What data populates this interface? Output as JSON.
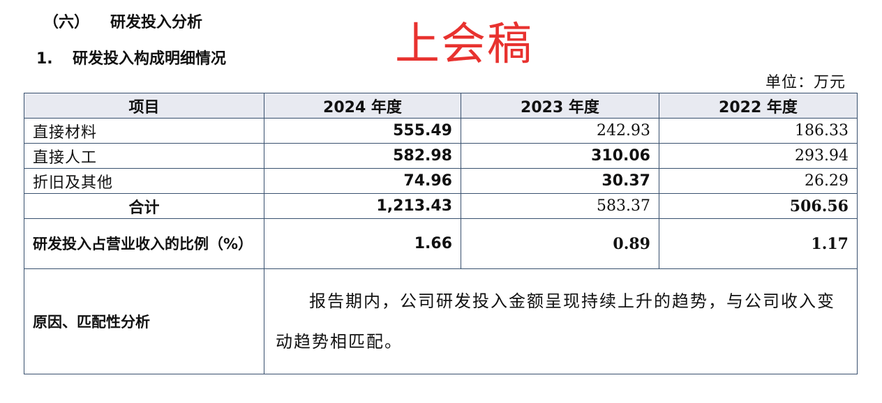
{
  "section_heading": {
    "number": "（六）",
    "title": "研发投入分析"
  },
  "sub_heading": {
    "number": "1.",
    "title": "研发投入构成明细情况"
  },
  "stamp": "上会稿",
  "unit": "单位：万元",
  "table": {
    "headers": [
      "项目",
      "2024 年度",
      "2023 年度",
      "2022 年度"
    ],
    "rows": [
      {
        "label": "直接材料",
        "values": [
          "555.49",
          "242.93",
          "186.33"
        ]
      },
      {
        "label": "直接人工",
        "values": [
          "582.98",
          "310.06",
          "293.94"
        ]
      },
      {
        "label": "折旧及其他",
        "values": [
          "74.96",
          "30.37",
          "26.29"
        ]
      },
      {
        "label": "合计",
        "values": [
          "1,213.43",
          "583.37",
          "506.56"
        ]
      },
      {
        "label": "研发投入占营业收入的比例（%）",
        "values": [
          "1.66",
          "0.89",
          "1.17"
        ]
      }
    ],
    "analysis": {
      "label": "原因、匹配性分析",
      "text": "报告期内，公司研发投入金额呈现持续上升的趋势，与公司收入变动趋势相匹配。"
    }
  }
}
